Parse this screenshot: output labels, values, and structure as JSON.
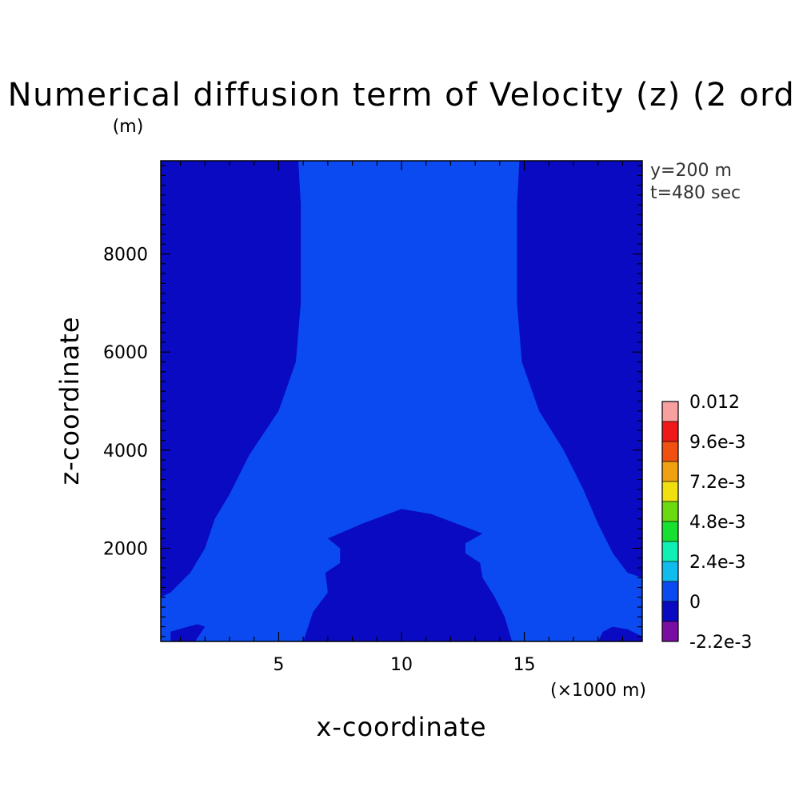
{
  "chart_data": {
    "type": "heatmap",
    "title": "Numerical diffusion term of Velocity (z) (2 ord",
    "xlabel": "x-coordinate",
    "ylabel": "z-coordinate",
    "x_unit": "(×1000 m)",
    "y_unit": "(m)",
    "x_ticks": [
      5,
      10,
      15
    ],
    "y_ticks": [
      2000,
      4000,
      6000,
      8000
    ],
    "xlim": [
      0.2,
      19.8
    ],
    "ylim": [
      100,
      9900
    ],
    "annotations": [
      "y=200 m",
      "t=480 sec"
    ],
    "colorbar": {
      "labels": [
        "0.012",
        "9.6e-3",
        "7.2e-3",
        "4.8e-3",
        "2.4e-3",
        "0",
        "-2.2e-3"
      ],
      "levels": [
        {
          "value": -0.0022,
          "color": "#7a0ea3"
        },
        {
          "value": -0.001,
          "color": "#0a0ac2"
        },
        {
          "value": 0.0012,
          "color": "#0a4af0"
        },
        {
          "value": 0.0024,
          "color": "#10bbee"
        },
        {
          "value": 0.0036,
          "color": "#10f0b4"
        },
        {
          "value": 0.0048,
          "color": "#18e030"
        },
        {
          "value": 0.006,
          "color": "#6cda10"
        },
        {
          "value": 0.0072,
          "color": "#f0e010"
        },
        {
          "value": 0.0084,
          "color": "#f0a010"
        },
        {
          "value": 0.0096,
          "color": "#f05010"
        },
        {
          "value": 0.0108,
          "color": "#f01818"
        },
        {
          "value": 0.012,
          "color": "#f8a0a0"
        }
      ]
    },
    "regions": {
      "negative_color": "#0a0ac2",
      "zero_color": "#0a4af0",
      "left_outer": [
        [
          0.2,
          9900
        ],
        [
          5.8,
          9900
        ],
        [
          5.9,
          9000
        ],
        [
          5.9,
          7000
        ],
        [
          5.7,
          5800
        ],
        [
          5.0,
          4800
        ],
        [
          3.8,
          3900
        ],
        [
          3.0,
          3100
        ],
        [
          2.4,
          2600
        ],
        [
          2.0,
          2000
        ],
        [
          1.4,
          1500
        ],
        [
          0.6,
          1100
        ],
        [
          0.2,
          1000
        ]
      ],
      "right_outer": [
        [
          19.8,
          9900
        ],
        [
          14.8,
          9900
        ],
        [
          14.7,
          9000
        ],
        [
          14.7,
          7000
        ],
        [
          14.9,
          5800
        ],
        [
          15.6,
          4800
        ],
        [
          16.6,
          4000
        ],
        [
          17.4,
          3200
        ],
        [
          18.0,
          2500
        ],
        [
          18.6,
          1900
        ],
        [
          19.2,
          1500
        ],
        [
          19.8,
          1400
        ]
      ],
      "center_dome": [
        [
          6.0,
          100
        ],
        [
          6.4,
          700
        ],
        [
          7.0,
          1100
        ],
        [
          6.9,
          1500
        ],
        [
          7.5,
          1700
        ],
        [
          7.5,
          2000
        ],
        [
          7.0,
          2200
        ],
        [
          8.4,
          2500
        ],
        [
          10.0,
          2800
        ],
        [
          11.2,
          2700
        ],
        [
          13.3,
          2300
        ],
        [
          12.6,
          2100
        ],
        [
          12.6,
          1900
        ],
        [
          13.2,
          1700
        ],
        [
          13.3,
          1400
        ],
        [
          13.8,
          1000
        ],
        [
          14.2,
          600
        ],
        [
          14.5,
          100
        ]
      ],
      "bottom_left_blob": [
        [
          0.6,
          100
        ],
        [
          1.6,
          100
        ],
        [
          2.0,
          400
        ],
        [
          1.7,
          450
        ],
        [
          1.3,
          400
        ],
        [
          0.6,
          300
        ]
      ],
      "bottom_right_blob": [
        [
          18.0,
          100
        ],
        [
          19.8,
          100
        ],
        [
          19.8,
          200
        ],
        [
          19.2,
          350
        ],
        [
          18.6,
          400
        ],
        [
          18.2,
          300
        ]
      ],
      "left_notch": [
        [
          0.2,
          500
        ],
        [
          0.5,
          600
        ],
        [
          0.4,
          800
        ],
        [
          0.2,
          900
        ]
      ]
    }
  }
}
